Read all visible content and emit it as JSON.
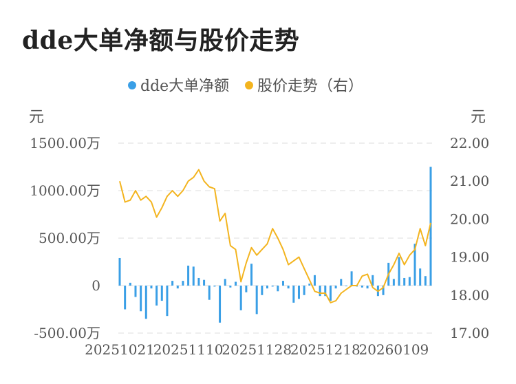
{
  "page": {
    "title": "dde大单净额与股价走势"
  },
  "colors": {
    "bar": "#3a9fe6",
    "line": "#f3b41f",
    "grid": "#e8e8e8",
    "text": "#555555"
  },
  "chart_data": {
    "type": "bar+line",
    "legend_position": "top-center",
    "grid": true,
    "y_left": {
      "unit": "元",
      "range": [
        -500,
        1500
      ],
      "ticks": [
        1500,
        1000,
        500,
        0,
        -500
      ],
      "tick_labels": [
        "1500.00万",
        "1000.00万",
        "500.00万",
        "0",
        "-500.00万"
      ]
    },
    "y_right": {
      "unit": "元",
      "range": [
        17,
        22
      ],
      "ticks": [
        22,
        21,
        20,
        19,
        18,
        17
      ],
      "tick_labels": [
        "22.00",
        "21.00",
        "20.00",
        "19.00",
        "18.00",
        "17.00"
      ]
    },
    "x_tick_labels": [
      "20251021",
      "20251110",
      "20251128",
      "20251218",
      "20260109"
    ],
    "x_tick_index": [
      0,
      13,
      26,
      39,
      52
    ],
    "series": [
      {
        "name": "dde大单净额",
        "kind": "bar",
        "axis": "left",
        "values": [
          290,
          -250,
          30,
          -120,
          -270,
          -350,
          -30,
          -210,
          -160,
          -320,
          50,
          -30,
          50,
          210,
          200,
          80,
          60,
          -150,
          -10,
          -390,
          70,
          -20,
          40,
          -260,
          -70,
          230,
          -300,
          -100,
          -30,
          -10,
          -60,
          50,
          -30,
          -180,
          -140,
          -100,
          20,
          110,
          -110,
          -110,
          -160,
          -30,
          70,
          0,
          150,
          -10,
          -20,
          -30,
          110,
          -110,
          -100,
          240,
          70,
          300,
          80,
          90,
          440,
          180,
          100,
          1250
        ]
      },
      {
        "name": "股价走势（右）",
        "kind": "line",
        "axis": "right",
        "values": [
          21.0,
          20.45,
          20.5,
          20.75,
          20.5,
          20.6,
          20.45,
          20.05,
          20.3,
          20.6,
          20.75,
          20.6,
          20.75,
          21.0,
          21.1,
          21.3,
          21.0,
          20.85,
          20.8,
          19.95,
          20.15,
          19.3,
          19.2,
          18.35,
          18.85,
          19.25,
          19.05,
          19.2,
          19.35,
          19.75,
          19.5,
          19.2,
          18.8,
          18.9,
          19.0,
          18.7,
          18.4,
          18.1,
          18.05,
          18.05,
          17.8,
          17.85,
          18.05,
          18.15,
          18.25,
          18.25,
          18.5,
          18.55,
          18.2,
          18.1,
          18.2,
          18.55,
          18.8,
          19.1,
          18.8,
          19.05,
          19.2,
          19.75,
          19.3,
          19.9
        ]
      }
    ]
  }
}
